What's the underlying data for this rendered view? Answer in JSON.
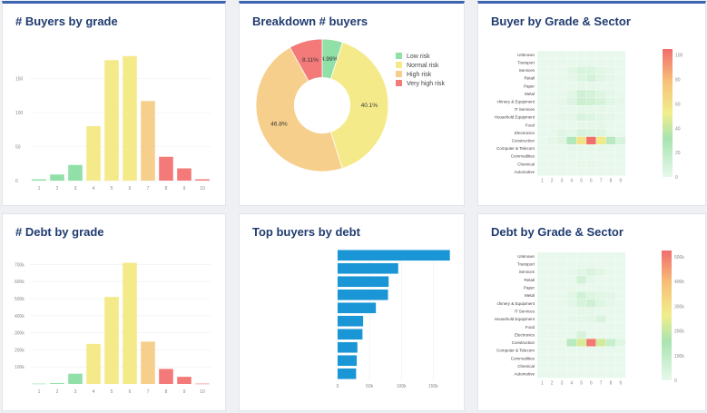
{
  "panels": {
    "buyers_by_grade": {
      "title": "# Buyers by grade"
    },
    "breakdown": {
      "title": "Breakdown # buyers"
    },
    "buyer_heat": {
      "title": "Buyer by Grade & Sector"
    },
    "debt_by_grade": {
      "title": "# Debt by grade"
    },
    "top_buyers": {
      "title": "Top buyers by debt"
    },
    "debt_heat": {
      "title": "Debt by Grade & Sector"
    }
  },
  "colors": {
    "low": "#90e0a8",
    "normal": "#f5ea8a",
    "high": "#f7cf8c",
    "very_high": "#f47a7a",
    "bar_blue": "#1a95d6"
  },
  "chart_data": [
    {
      "id": "buyers_by_grade",
      "type": "bar",
      "categories": [
        "1",
        "2",
        "3",
        "4",
        "5",
        "6",
        "7",
        "8",
        "9",
        "10"
      ],
      "values": [
        2,
        9,
        23,
        80,
        177,
        183,
        117,
        35,
        18,
        2
      ],
      "bar_colors": [
        "#90e0a8",
        "#90e0a8",
        "#90e0a8",
        "#f5ea8a",
        "#f5ea8a",
        "#f5ea8a",
        "#f7cf8c",
        "#f47a7a",
        "#f47a7a",
        "#f47a7a"
      ],
      "yticks": [
        0,
        50,
        100,
        150
      ],
      "ylim": [
        0,
        200
      ],
      "ytick_labels": [
        "0",
        "50",
        "100",
        "150"
      ]
    },
    {
      "id": "breakdown",
      "type": "pie",
      "labels": [
        "Low risk",
        "Normal risk",
        "High risk",
        "Very high risk"
      ],
      "values": [
        4.99,
        40.1,
        46.8,
        8.11
      ],
      "value_labels": [
        "4.99%",
        "40.1%",
        "46.8%",
        "8.11%"
      ],
      "colors": [
        "#90e0a8",
        "#f5ea8a",
        "#f7cf8c",
        "#f47a7a"
      ],
      "hole": 0.42,
      "legend_position": "right"
    },
    {
      "id": "buyer_heat",
      "type": "heatmap",
      "rows": [
        "Unknown",
        "Transport",
        "Services",
        "Retail",
        "Paper",
        "Metal",
        "chinery & Equipment",
        "IT Services",
        "Household Equipment",
        "Food",
        "Electronics",
        "Construction",
        "Computer & Telecom",
        "Commodities",
        "Chemical",
        "Automotive"
      ],
      "cols": [
        "1",
        "2",
        "3",
        "4",
        "5",
        "6",
        "7",
        "8",
        "9"
      ],
      "values": [
        [
          0,
          0,
          0,
          0,
          0,
          0,
          0,
          0,
          0
        ],
        [
          0,
          0,
          0,
          0,
          0,
          0,
          0,
          0,
          0
        ],
        [
          0,
          0,
          0,
          3,
          8,
          7,
          3,
          1,
          0
        ],
        [
          0,
          0,
          0,
          2,
          6,
          10,
          4,
          1,
          0
        ],
        [
          0,
          0,
          0,
          0,
          1,
          1,
          0,
          0,
          0
        ],
        [
          0,
          0,
          0,
          3,
          12,
          10,
          5,
          2,
          0
        ],
        [
          0,
          0,
          1,
          6,
          14,
          13,
          9,
          3,
          1
        ],
        [
          0,
          0,
          0,
          0,
          2,
          2,
          1,
          0,
          0
        ],
        [
          0,
          0,
          1,
          2,
          8,
          6,
          3,
          1,
          0
        ],
        [
          0,
          0,
          0,
          0,
          1,
          1,
          1,
          0,
          0
        ],
        [
          0,
          0,
          4,
          2,
          8,
          6,
          5,
          0,
          0
        ],
        [
          0,
          1,
          4,
          27,
          58,
          105,
          55,
          23,
          8
        ],
        [
          0,
          0,
          0,
          1,
          1,
          1,
          1,
          0,
          0
        ],
        [
          0,
          0,
          0,
          0,
          0,
          0,
          0,
          0,
          0
        ],
        [
          0,
          0,
          0,
          0,
          1,
          1,
          0,
          0,
          0
        ],
        [
          0,
          0,
          0,
          0,
          0,
          0,
          0,
          0,
          0
        ]
      ],
      "zlim": [
        0,
        105
      ],
      "colorbar_ticks": [
        "0",
        "20",
        "40",
        "60",
        "80",
        "100"
      ]
    },
    {
      "id": "debt_by_grade",
      "type": "bar",
      "categories": [
        "1",
        "2",
        "3",
        "4",
        "5",
        "6",
        "7",
        "8",
        "9",
        "10"
      ],
      "values": [
        2000,
        5000,
        60000,
        235000,
        510000,
        710000,
        248000,
        88000,
        42000,
        2000
      ],
      "bar_colors": [
        "#90e0a8",
        "#90e0a8",
        "#90e0a8",
        "#f5ea8a",
        "#f5ea8a",
        "#f5ea8a",
        "#f7cf8c",
        "#f47a7a",
        "#f47a7a",
        "#f47a7a"
      ],
      "yticks": [
        100000,
        200000,
        300000,
        400000,
        500000,
        600000,
        700000
      ],
      "ylim": [
        0,
        750000
      ],
      "ytick_labels": [
        "100k",
        "200k",
        "300k",
        "400k",
        "500k",
        "600k",
        "700k"
      ]
    },
    {
      "id": "top_buyers",
      "type": "bar",
      "orientation": "horizontal",
      "values": [
        176000,
        95000,
        80000,
        79000,
        60000,
        40000,
        39000,
        31000,
        30000,
        29000
      ],
      "xticks": [
        0,
        50000,
        100000,
        150000
      ],
      "xtick_labels": [
        "0",
        "50k",
        "100k",
        "150k"
      ],
      "xlim": [
        0,
        185000
      ]
    },
    {
      "id": "debt_heat",
      "type": "heatmap",
      "rows": [
        "Unknown",
        "Transport",
        "Services",
        "Retail",
        "Paper",
        "Metal",
        "chinery & Equipment",
        "IT Services",
        "Household Equipment",
        "Food",
        "Electronics",
        "Construction",
        "Computer & Telecom",
        "Commodities",
        "Chemical",
        "Automotive"
      ],
      "cols": [
        "1",
        "2",
        "3",
        "4",
        "5",
        "6",
        "7",
        "8",
        "9"
      ],
      "values": [
        [
          0,
          0,
          0,
          0,
          0,
          0,
          0,
          0,
          0
        ],
        [
          0,
          0,
          0,
          0,
          0,
          0,
          0,
          0,
          0
        ],
        [
          0,
          0,
          0,
          8000,
          15000,
          40000,
          20000,
          0,
          0
        ],
        [
          0,
          0,
          0,
          0,
          60000,
          10000,
          0,
          0,
          0
        ],
        [
          0,
          0,
          0,
          0,
          0,
          0,
          0,
          0,
          0
        ],
        [
          0,
          0,
          0,
          20000,
          65000,
          30000,
          20000,
          15000,
          0
        ],
        [
          0,
          0,
          0,
          15000,
          45000,
          70000,
          30000,
          10000,
          0
        ],
        [
          0,
          0,
          0,
          0,
          8000,
          8000,
          0,
          0,
          0
        ],
        [
          0,
          0,
          0,
          8000,
          10000,
          15000,
          40000,
          0,
          0
        ],
        [
          0,
          0,
          0,
          0,
          0,
          0,
          0,
          0,
          0
        ],
        [
          0,
          0,
          0,
          0,
          50000,
          0,
          0,
          0,
          0
        ],
        [
          0,
          0,
          0,
          130000,
          250000,
          560000,
          240000,
          90000,
          30000
        ],
        [
          0,
          0,
          0,
          0,
          0,
          0,
          0,
          0,
          0
        ],
        [
          0,
          0,
          0,
          0,
          0,
          0,
          0,
          0,
          0
        ],
        [
          0,
          0,
          0,
          0,
          0,
          0,
          0,
          0,
          0
        ],
        [
          0,
          0,
          0,
          0,
          0,
          0,
          0,
          0,
          0
        ]
      ],
      "zlim": [
        0,
        580000
      ],
      "colorbar_ticks": [
        "0",
        "100k",
        "200k",
        "300k",
        "400k",
        "500k"
      ]
    }
  ]
}
